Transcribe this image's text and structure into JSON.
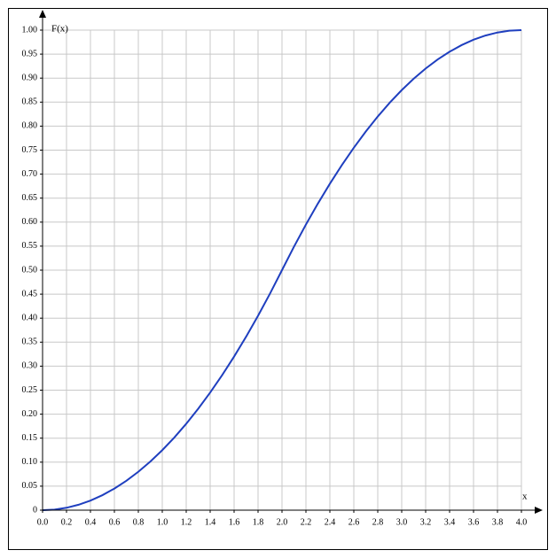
{
  "chart_data": {
    "type": "line",
    "x_label": "x",
    "y_label": "F(x)",
    "x": [
      0,
      0.1,
      0.2,
      0.3,
      0.4,
      0.5,
      0.6,
      0.7,
      0.8,
      0.9,
      1,
      1.1,
      1.2,
      1.3,
      1.4,
      1.5,
      1.6,
      1.7,
      1.8,
      1.9,
      2,
      2.1,
      2.2,
      2.3,
      2.4,
      2.5,
      2.6,
      2.7,
      2.8,
      2.9,
      3,
      3.1,
      3.2,
      3.3,
      3.4,
      3.5,
      3.6,
      3.7,
      3.8,
      3.9,
      4
    ],
    "series": [
      {
        "color": "#1f3fbf",
        "values": [
          0,
          0.00125,
          0.005,
          0.01125,
          0.02,
          0.03125,
          0.045,
          0.06125,
          0.08,
          0.10125,
          0.125,
          0.15125,
          0.18,
          0.21125,
          0.245,
          0.28125,
          0.32,
          0.36125,
          0.405,
          0.45125,
          0.5,
          0.54875,
          0.595,
          0.63875,
          0.68,
          0.71875,
          0.755,
          0.78875,
          0.82,
          0.84875,
          0.875,
          0.89875,
          0.92,
          0.93875,
          0.955,
          0.96875,
          0.98,
          0.98875,
          0.995,
          0.99875,
          1
        ]
      }
    ],
    "xlim": [
      0,
      4
    ],
    "ylim": [
      0,
      1
    ],
    "xticks": [
      {
        "value": 0,
        "label": "0.0"
      },
      {
        "value": 0.2,
        "label": "0.2"
      },
      {
        "value": 0.4,
        "label": "0.4"
      },
      {
        "value": 0.6,
        "label": "0.6"
      },
      {
        "value": 0.8,
        "label": "0.8"
      },
      {
        "value": 1,
        "label": "1.0"
      },
      {
        "value": 1.2,
        "label": "1.2"
      },
      {
        "value": 1.4,
        "label": "1.4"
      },
      {
        "value": 1.6,
        "label": "1.6"
      },
      {
        "value": 1.8,
        "label": "1.8"
      },
      {
        "value": 2,
        "label": "2.0"
      },
      {
        "value": 2.2,
        "label": "2.2"
      },
      {
        "value": 2.4,
        "label": "2.4"
      },
      {
        "value": 2.6,
        "label": "2.6"
      },
      {
        "value": 2.8,
        "label": "2.8"
      },
      {
        "value": 3,
        "label": "3.0"
      },
      {
        "value": 3.2,
        "label": "3.2"
      },
      {
        "value": 3.4,
        "label": "3.4"
      },
      {
        "value": 3.6,
        "label": "3.6"
      },
      {
        "value": 3.8,
        "label": "3.8"
      },
      {
        "value": 4,
        "label": "4.0"
      }
    ],
    "yticks": [
      0,
      0.05,
      {
        "value": 0.1,
        "label": "0.10"
      },
      0.15,
      {
        "value": 0.2,
        "label": "0.20"
      },
      0.25,
      {
        "value": 0.3,
        "label": "0.30"
      },
      0.35,
      {
        "value": 0.4,
        "label": "0.40"
      },
      0.45,
      {
        "value": 0.5,
        "label": "0.50"
      },
      0.55,
      {
        "value": 0.6,
        "label": "0.60"
      },
      0.65,
      {
        "value": 0.7,
        "label": "0.70"
      },
      0.75,
      {
        "value": 0.8,
        "label": "0.80"
      },
      0.85,
      {
        "value": 0.9,
        "label": "0.90"
      },
      0.95,
      {
        "value": 1,
        "label": "1.00"
      }
    ],
    "grid": true
  }
}
